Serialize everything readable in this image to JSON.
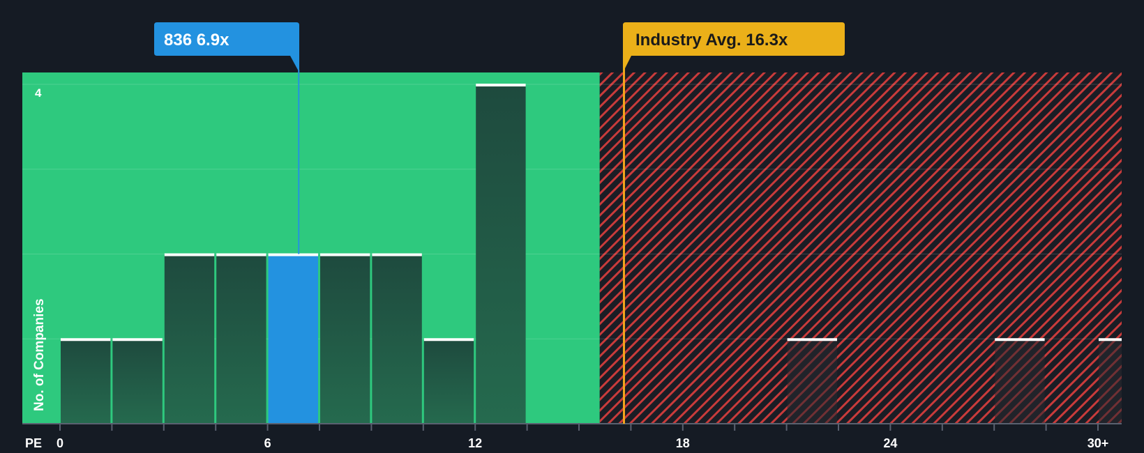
{
  "chart_data": {
    "type": "bar",
    "xlabel": "PE",
    "ylabel": "No. of Companies",
    "xlim": [
      0,
      30.8
    ],
    "ylim": [
      0,
      4.14
    ],
    "bin_width": 1.5,
    "bins": [
      {
        "start": 0,
        "value": 1
      },
      {
        "start": 1.5,
        "value": 1
      },
      {
        "start": 3,
        "value": 2
      },
      {
        "start": 4.5,
        "value": 2
      },
      {
        "start": 6,
        "value": 2,
        "highlight": true
      },
      {
        "start": 7.5,
        "value": 2
      },
      {
        "start": 9,
        "value": 2
      },
      {
        "start": 10.5,
        "value": 1
      },
      {
        "start": 12,
        "value": 4
      },
      {
        "start": 21,
        "value": 1
      },
      {
        "start": 27,
        "value": 1
      },
      {
        "start": 30,
        "value": 1
      }
    ],
    "x_ticks": [
      {
        "value": 0,
        "label": "0"
      },
      {
        "value": 6,
        "label": "6"
      },
      {
        "value": 12,
        "label": "12"
      },
      {
        "value": 18,
        "label": "18"
      },
      {
        "value": 24,
        "label": "24"
      },
      {
        "value": 30,
        "label": "30+"
      }
    ],
    "minor_tick_step": 1.5,
    "y_gridlines": [
      1,
      2,
      3,
      4
    ],
    "y_tick_label": {
      "value": 4,
      "label": "4"
    },
    "fair_zone_end": 15.6,
    "company": {
      "label": "836 6.9x",
      "value": 6.9
    },
    "industry": {
      "label": "Industry Avg. 16.3x",
      "value": 16.3
    }
  },
  "colors": {
    "background": "#151b24",
    "fair_zone": "#2ec97e",
    "bar": "#1f4f3f",
    "bar_highlight": "#2392e0",
    "bar_cap": "#ffffff",
    "over_zone_stripe": "#c93b3b",
    "company_callout": "#2392e0",
    "industry_callout": "#ebb019",
    "axis_text": "#ffffff"
  }
}
